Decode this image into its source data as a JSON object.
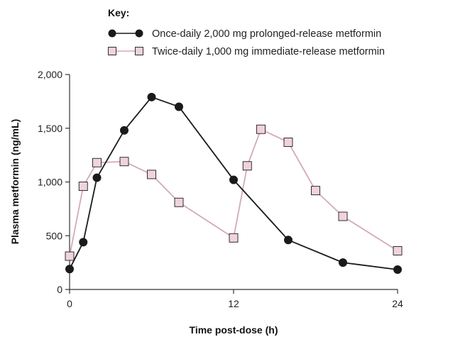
{
  "chart_data": {
    "type": "line",
    "xlabel": "Time post-dose (h)",
    "ylabel": "Plasma metformin (ng/mL)",
    "xlim": [
      0,
      24
    ],
    "ylim": [
      0,
      2000
    ],
    "x_ticks": [
      0,
      12,
      24
    ],
    "x_tick_labels": [
      "0",
      "12",
      "24"
    ],
    "y_ticks": [
      0,
      500,
      1000,
      1500,
      2000
    ],
    "y_tick_labels": [
      "0",
      "500",
      "1,000",
      "1,500",
      "2,000"
    ],
    "grid": false,
    "legend": {
      "title": "Key:",
      "placement": "top"
    },
    "series": [
      {
        "name": "Once-daily 2,000 mg prolonged-release metformin",
        "marker": "circle",
        "line_color": "#1a1a1a",
        "marker_fill": "#1a1a1a",
        "x": [
          0,
          1,
          2,
          4,
          6,
          8,
          12,
          16,
          20,
          24
        ],
        "y": [
          190,
          440,
          1040,
          1480,
          1790,
          1700,
          1020,
          460,
          250,
          185
        ]
      },
      {
        "name": "Twice-daily 1,000 mg immediate-release metformin",
        "marker": "square",
        "line_color": "#d3aab6",
        "marker_fill": "#f1d3dc",
        "marker_stroke": "#1a1a1a",
        "x": [
          0,
          1,
          2,
          4,
          6,
          8,
          12,
          13,
          14,
          16,
          18,
          20,
          24
        ],
        "y": [
          310,
          960,
          1180,
          1190,
          1070,
          810,
          480,
          1150,
          1490,
          1370,
          920,
          680,
          360
        ]
      }
    ]
  }
}
